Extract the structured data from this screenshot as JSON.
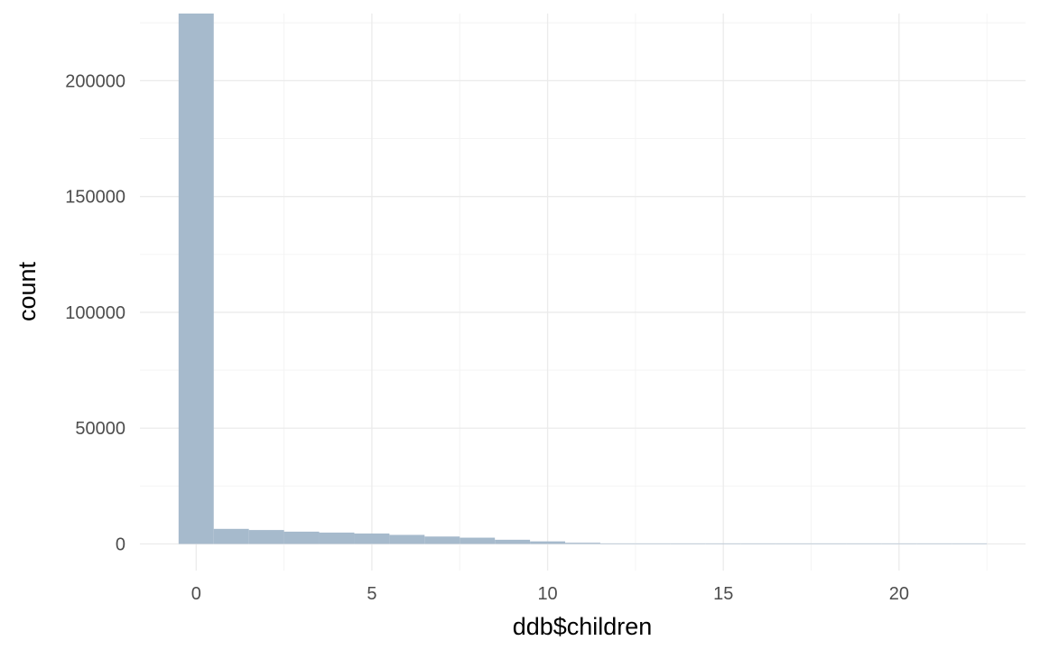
{
  "chart_data": {
    "type": "bar",
    "subtype": "histogram",
    "xlabel": "ddb$children",
    "ylabel": "count",
    "xlim": [
      -1.6,
      23.6
    ],
    "ylim": [
      -11500,
      229000
    ],
    "x_ticks": [
      0,
      5,
      10,
      15,
      20
    ],
    "x_tick_labels": [
      "0",
      "5",
      "10",
      "15",
      "20"
    ],
    "y_ticks": [
      0,
      50000,
      100000,
      150000,
      200000
    ],
    "y_tick_labels": [
      "0",
      "50000",
      "100000",
      "150000",
      "200000"
    ],
    "bin_width": 1,
    "bins": [
      {
        "x": 0,
        "count": 229000
      },
      {
        "x": 1,
        "count": 6500
      },
      {
        "x": 2,
        "count": 6000
      },
      {
        "x": 3,
        "count": 5300
      },
      {
        "x": 4,
        "count": 4900
      },
      {
        "x": 5,
        "count": 4500
      },
      {
        "x": 6,
        "count": 3900
      },
      {
        "x": 7,
        "count": 3200
      },
      {
        "x": 8,
        "count": 2700
      },
      {
        "x": 9,
        "count": 1800
      },
      {
        "x": 10,
        "count": 1100
      },
      {
        "x": 11,
        "count": 500
      },
      {
        "x": 12,
        "count": 200
      },
      {
        "x": 13,
        "count": 80
      },
      {
        "x": 14,
        "count": 30
      },
      {
        "x": 15,
        "count": 15
      },
      {
        "x": 16,
        "count": 8
      },
      {
        "x": 17,
        "count": 5
      },
      {
        "x": 18,
        "count": 3
      },
      {
        "x": 19,
        "count": 2
      },
      {
        "x": 20,
        "count": 1
      },
      {
        "x": 21,
        "count": 1
      },
      {
        "x": 22,
        "count": 1
      }
    ],
    "bar_color": "#a6bacc",
    "grid": true,
    "legend": "none"
  }
}
